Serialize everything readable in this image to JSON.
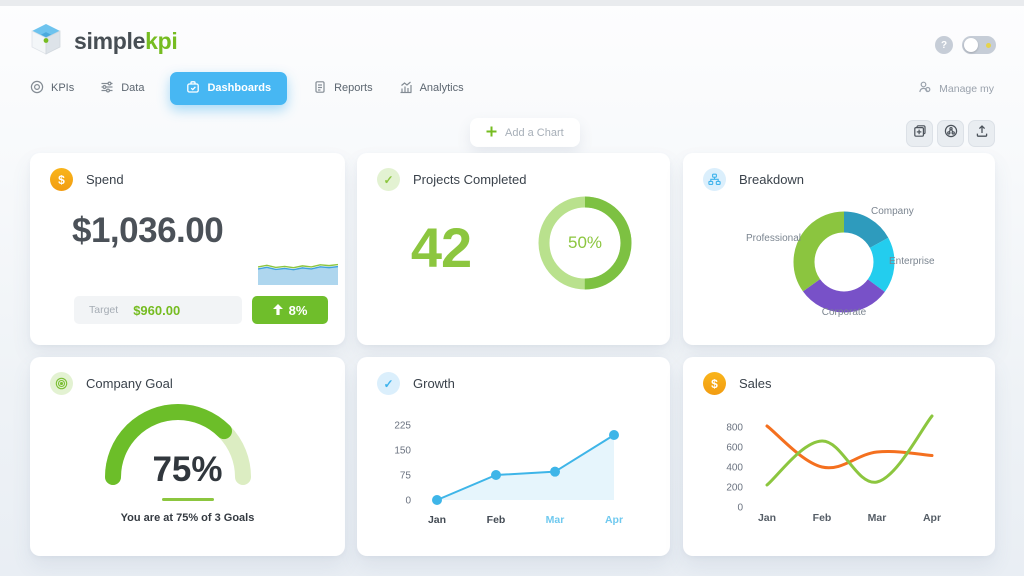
{
  "brand": {
    "name_part1": "simple",
    "name_part2": "kpi",
    "logo_icon": "cube-logo"
  },
  "header": {
    "help_button": "?",
    "theme_toggle": {
      "icon": "toggle-switch",
      "state": "off"
    }
  },
  "nav": {
    "items": [
      {
        "label": "KPIs",
        "icon": "target-icon",
        "active": false
      },
      {
        "label": "Data",
        "icon": "data-list-icon",
        "active": false
      },
      {
        "label": "Dashboards",
        "icon": "dashboard-icon",
        "active": true
      },
      {
        "label": "Reports",
        "icon": "report-icon",
        "active": false
      },
      {
        "label": "Analytics",
        "icon": "analytics-icon",
        "active": false
      }
    ],
    "manage_label": "Manage my"
  },
  "toolbar": {
    "add_chart_label": "Add a Chart",
    "actions": [
      {
        "icon": "add-frame-icon"
      },
      {
        "icon": "share-icon"
      },
      {
        "icon": "upload-icon"
      }
    ]
  },
  "cards": {
    "spend": {
      "title": "Spend",
      "icon": "dollar-icon",
      "value": "$1,036.00",
      "target_label": "Target",
      "target_value": "$960.00",
      "change_label": "8%",
      "change_direction": "up"
    },
    "projects": {
      "title": "Projects Completed",
      "icon": "check-icon",
      "value": "42",
      "percent_label": "50%"
    },
    "breakdown": {
      "title": "Breakdown",
      "icon": "hierarchy-icon"
    },
    "goal": {
      "title": "Company Goal",
      "icon": "target-rings-icon",
      "percent_label": "75%",
      "caption": "You are at 75% of 3 Goals"
    },
    "growth": {
      "title": "Growth",
      "icon": "check-icon"
    },
    "sales": {
      "title": "Sales",
      "icon": "dollar-icon"
    }
  },
  "chart_data": [
    {
      "id": "spend-sparkline",
      "type": "area",
      "values": [
        58,
        64,
        56,
        60,
        55,
        62,
        58,
        66,
        63,
        67
      ],
      "ylim": [
        0,
        100
      ],
      "fill_color": "#aed6ee",
      "line_colors": [
        "#8cc63f",
        "#3fa2de"
      ]
    },
    {
      "id": "projects-donut",
      "type": "donut",
      "percent": 50,
      "center_label": "50%",
      "progress_color": "#7dc142",
      "track_color": "#b9e18d"
    },
    {
      "id": "breakdown-donut",
      "type": "pie",
      "labels": [
        "Company",
        "Enterprise",
        "Corporate",
        "Professional"
      ],
      "values": [
        17,
        18,
        30,
        35
      ],
      "colors": [
        "#2e9bbd",
        "#23cdee",
        "#7851c8",
        "#8bc53f"
      ]
    },
    {
      "id": "goal-gauge",
      "type": "gauge",
      "percent": 75,
      "progress_color": "#6cbe29",
      "track_color": "#dcedc2"
    },
    {
      "id": "growth-line",
      "type": "line",
      "x": [
        "Jan",
        "Feb",
        "Mar",
        "Apr"
      ],
      "yticks": [
        0,
        75,
        150,
        225
      ],
      "ylim": [
        0,
        235
      ],
      "series": [
        {
          "name": "Growth",
          "values": [
            0,
            75,
            85,
            195
          ],
          "color": "#3eb5e8"
        }
      ],
      "area": true,
      "dots": true,
      "smooth": false,
      "xtick_colors": [
        "#434b54",
        "#434b54",
        "#6fc9ef",
        "#6fc9ef"
      ]
    },
    {
      "id": "sales-lines",
      "type": "line",
      "x": [
        "Jan",
        "Feb",
        "Mar",
        "Apr"
      ],
      "yticks": [
        0,
        200,
        400,
        600,
        800
      ],
      "ylim": [
        0,
        950
      ],
      "series": [
        {
          "name": "series-orange",
          "values": [
            810,
            400,
            550,
            515
          ],
          "color": "#f4701f"
        },
        {
          "name": "series-green",
          "values": [
            220,
            660,
            250,
            910
          ],
          "color": "#8cc63f"
        }
      ],
      "area": false,
      "dots": false,
      "smooth": true
    }
  ]
}
